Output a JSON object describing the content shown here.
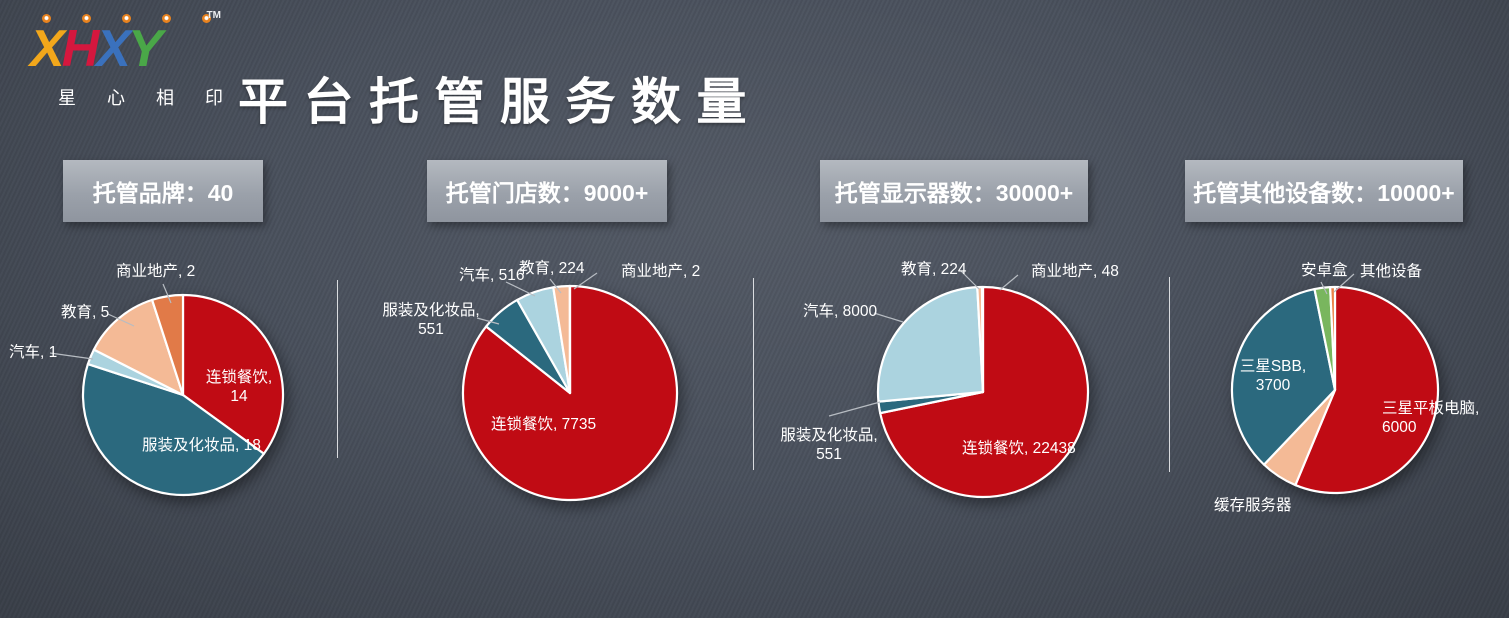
{
  "logo": {
    "letters": [
      "X",
      "H",
      "X",
      "Y"
    ],
    "tm": "TM",
    "subtitle": "星 心 相 印"
  },
  "page_title": "平台托管服务数量",
  "ui_colors": {
    "background": "#49505c",
    "badge_gray": "#9ba1aa",
    "text_white": "#ffffff",
    "leader_line": "#b7bcc2",
    "divider": "#f3f5f7"
  },
  "chart_data": [
    {
      "type": "pie",
      "header": "托管品牌：40",
      "categories": [
        "连锁餐饮",
        "服装及化妆品",
        "汽车",
        "教育",
        "商业地产"
      ],
      "values": [
        14,
        18,
        1,
        5,
        2
      ],
      "colors": [
        "#c00b14",
        "#2b697e",
        "#abd3df",
        "#f4ba96",
        "#e17a48"
      ],
      "start_angle": "12-oclock",
      "direction": "clockwise",
      "legend": false,
      "display_labels": [
        "商业地产, 2",
        "教育, 5",
        "汽车, 1",
        "连锁餐饮,\n14",
        "服装及化妆品, 18"
      ]
    },
    {
      "type": "pie",
      "header": "托管门店数：9000+",
      "categories": [
        "连锁餐饮",
        "服装及化妆品",
        "汽车",
        "教育",
        "商业地产"
      ],
      "values": [
        7735,
        551,
        516,
        224,
        2
      ],
      "colors": [
        "#c00b14",
        "#2b697e",
        "#abd3df",
        "#f4ba96",
        "#e17a48"
      ],
      "start_angle": "12-oclock",
      "direction": "clockwise",
      "legend": false,
      "display_labels": [
        "汽车, 516",
        "教育, 224",
        "商业地产, 2",
        "服装及化妆品,\n551",
        "连锁餐饮, 7735"
      ]
    },
    {
      "type": "pie",
      "header": "托管显示器数：30000+",
      "categories": [
        "连锁餐饮",
        "服装及化妆品",
        "汽车",
        "教育",
        "商业地产"
      ],
      "values": [
        22438,
        551,
        8000,
        224,
        48
      ],
      "colors": [
        "#c00b14",
        "#2b697e",
        "#abd3df",
        "#f4ba96",
        "#e17a48"
      ],
      "start_angle": "12-oclock",
      "direction": "clockwise",
      "legend": false,
      "display_labels": [
        "教育, 224",
        "商业地产, 48",
        "汽车, 8000",
        "服装及化妆品,\n551",
        "连锁餐饮, 22438"
      ]
    },
    {
      "type": "pie",
      "header": "托管其他设备数：10000+",
      "categories": [
        "三星平板电脑",
        "缓存服务器",
        "三星SBB",
        "安卓盒",
        "其他设备"
      ],
      "values": [
        6000,
        620,
        3700,
        260,
        80
      ],
      "colors": [
        "#c00b14",
        "#f4ba96",
        "#2b697e",
        "#79b65e",
        "#ea8148"
      ],
      "start_angle": "12-oclock",
      "direction": "clockwise",
      "legend": false,
      "display_labels": [
        "安卓盒",
        "其他设备",
        "三星SBB,\n3700",
        "三星平板电脑, 6000",
        "缓存服务器"
      ]
    }
  ]
}
